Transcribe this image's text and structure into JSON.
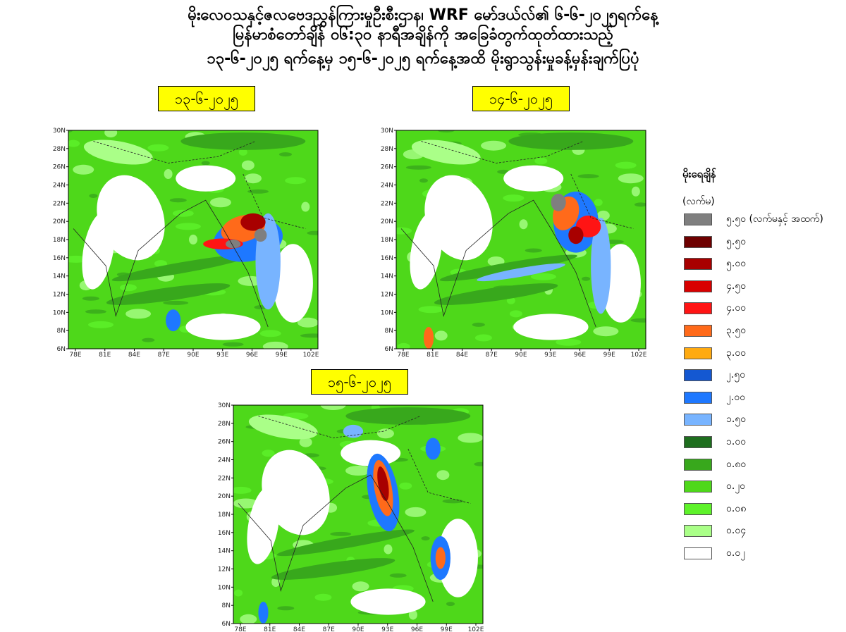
{
  "header": {
    "lines": [
      "မိုးလေဝသနှင့်ဇလဗေဒညွှန်ကြားမှုဦးစီးဌာန၊ WRF မော်ဒယ်လ်၏ ၆-၆-၂၀၂၅ရက်နေ့",
      "မြန်မာစံတော်ချိန် ၀၆:၃၀ နာရီအချိန်ကို အခြေခံတွက်ထုတ်ထားသည့်",
      "၁၃-၆-၂၀၂၅ ရက်နေ့မှ ၁၅-၆-၂၀၂၅ ရက်နေ့အထိ မိုးရွာသွန်းမှုခန့်မှန်းချက်ပြပုံ"
    ]
  },
  "maps": [
    {
      "date": "၁၃-၆-၂၀၂၅",
      "lat_labels": [
        "30N",
        "28N",
        "26N",
        "24N",
        "22N",
        "20N",
        "18N",
        "16N",
        "14N",
        "12N",
        "10N",
        "8N",
        "6N"
      ],
      "lon_labels": [
        "78E",
        "81E",
        "84E",
        "87E",
        "90E",
        "93E",
        "96E",
        "99E",
        "102E"
      ]
    },
    {
      "date": "၁၄-၆-၂၀၂၅",
      "lat_labels": [
        "30N",
        "28N",
        "26N",
        "24N",
        "22N",
        "20N",
        "18N",
        "16N",
        "14N",
        "12N",
        "10N",
        "8N",
        "6N"
      ],
      "lon_labels": [
        "78E",
        "81E",
        "84E",
        "87E",
        "90E",
        "93E",
        "96E",
        "99E",
        "102E"
      ]
    },
    {
      "date": "၁၅-၆-၂၀၂၅",
      "lat_labels": [
        "30N",
        "28N",
        "26N",
        "24N",
        "22N",
        "20N",
        "18N",
        "16N",
        "14N",
        "12N",
        "10N",
        "8N",
        "6N"
      ],
      "lon_labels": [
        "78E",
        "81E",
        "84E",
        "87E",
        "90E",
        "93E",
        "96E",
        "99E",
        "102E"
      ]
    }
  ],
  "legend": {
    "title": "မိုးရေချိန်",
    "unit": "(လက်မ)",
    "items": [
      {
        "label": "၅.၅၀ (လက်မနှင့် အထက်)",
        "color": "#7f7f7f"
      },
      {
        "label": "၅.၅၀",
        "color": "#6e0000"
      },
      {
        "label": "၅.၀၀",
        "color": "#a80000"
      },
      {
        "label": "၄.၅၀",
        "color": "#d80000"
      },
      {
        "label": "၄.၀၀",
        "color": "#ff1414"
      },
      {
        "label": "၃.၅၀",
        "color": "#ff6a1a"
      },
      {
        "label": "၃.၀၀",
        "color": "#ffaa10"
      },
      {
        "label": "၂.၅၀",
        "color": "#1458d2"
      },
      {
        "label": "၂.၀၀",
        "color": "#1e78ff"
      },
      {
        "label": "၁.၅၀",
        "color": "#78b4ff"
      },
      {
        "label": "၁.၀၀",
        "color": "#1e6e1e"
      },
      {
        "label": "၀.၈၀",
        "color": "#38a81c"
      },
      {
        "label": "၀.၂၀",
        "color": "#4ed81a"
      },
      {
        "label": "၀.၀၈",
        "color": "#5ef22a"
      },
      {
        "label": "၀.၀၄",
        "color": "#aaff88"
      },
      {
        "label": "၀.၀၂",
        "color": "#ffffff"
      }
    ]
  }
}
